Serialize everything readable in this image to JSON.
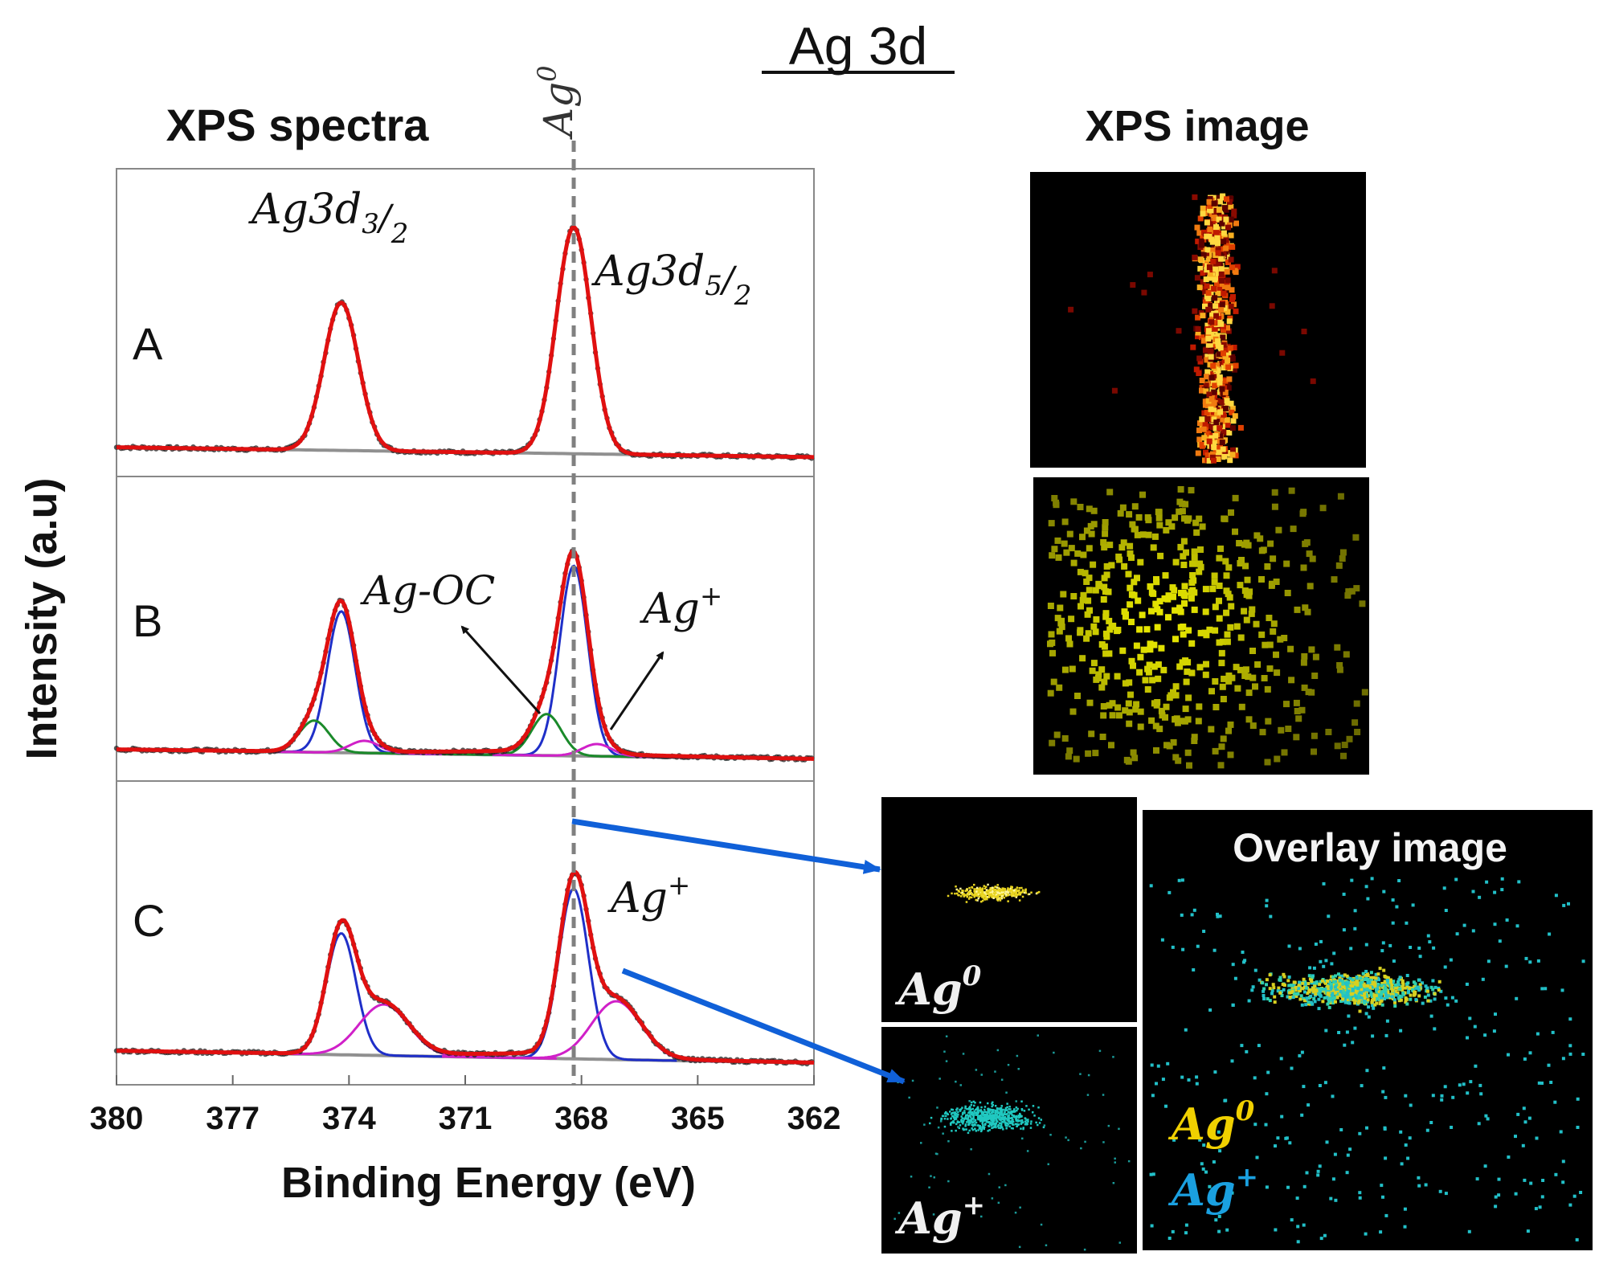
{
  "figure": {
    "title": "Ag 3d",
    "spectra_heading": "XPS spectra",
    "image_heading": "XPS image",
    "overlay_title": "Overlay image"
  },
  "chart_data": {
    "type": "line",
    "title": "Ag 3d",
    "subtitle": "XPS spectra",
    "xlabel": "Binding Energy (eV)",
    "ylabel": "Intensity (a.u)",
    "xlim": [
      380,
      362
    ],
    "xticks": [
      380,
      377,
      374,
      371,
      368,
      365,
      362
    ],
    "reference_line": {
      "label_base": "Ag",
      "label_sup": "0",
      "x": 368.2
    },
    "panels": [
      {
        "label": "A",
        "baseline": [
          0.06,
          0.02
        ],
        "components": [
          {
            "name": "Ag3d3/2 Ag0",
            "color": "#1f2fc8",
            "center": 374.2,
            "height": 0.6,
            "fwhm": 1.05
          },
          {
            "name": "Ag3d5/2 Ag0",
            "color": "#1f2fc8",
            "center": 368.2,
            "height": 0.92,
            "fwhm": 1.05
          }
        ],
        "annotations": [
          {
            "base": "Ag3d",
            "sub": "3",
            "denom": "2",
            "peak": "Ag3d3/2"
          },
          {
            "base": "Ag3d",
            "sub": "5",
            "denom": "2",
            "peak": "Ag3d5/2"
          }
        ]
      },
      {
        "label": "B",
        "baseline": [
          0.07,
          0.03
        ],
        "components": [
          {
            "name": "Ag0 3d3/2",
            "color": "#1f2fc8",
            "center": 374.2,
            "height": 0.58,
            "fwhm": 0.85
          },
          {
            "name": "Ag-OC 3d3/2",
            "color": "#1a8a2a",
            "center": 374.9,
            "height": 0.13,
            "fwhm": 0.9
          },
          {
            "name": "Ag+ 3d3/2",
            "color": "#d020c8",
            "center": 373.6,
            "height": 0.05,
            "fwhm": 0.9
          },
          {
            "name": "Ag0 3d5/2",
            "color": "#1f2fc8",
            "center": 368.2,
            "height": 0.78,
            "fwhm": 0.85
          },
          {
            "name": "Ag-OC 3d5/2",
            "color": "#1a8a2a",
            "center": 368.9,
            "height": 0.17,
            "fwhm": 0.9
          },
          {
            "name": "Ag+ 3d5/2",
            "color": "#d020c8",
            "center": 367.6,
            "height": 0.05,
            "fwhm": 0.9
          }
        ],
        "annotations": [
          {
            "text": "Ag-OC"
          },
          {
            "base": "Ag",
            "sup": "+"
          }
        ]
      },
      {
        "label": "C",
        "baseline": [
          0.08,
          0.03
        ],
        "components": [
          {
            "name": "Ag0 3d3/2",
            "color": "#1f2fc8",
            "center": 374.2,
            "height": 0.5,
            "fwhm": 0.9
          },
          {
            "name": "Ag+ 3d3/2",
            "color": "#d020c8",
            "center": 373.1,
            "height": 0.21,
            "fwhm": 1.5
          },
          {
            "name": "Ag0 3d5/2",
            "color": "#1f2fc8",
            "center": 368.2,
            "height": 0.7,
            "fwhm": 0.9
          },
          {
            "name": "Ag+ 3d5/2",
            "color": "#d020c8",
            "center": 367.1,
            "height": 0.24,
            "fwhm": 1.5
          }
        ],
        "annotations": [
          {
            "base": "Ag",
            "sup": "+"
          }
        ]
      }
    ],
    "colors": {
      "fit": "#e01010",
      "baseline": "#909090",
      "data": "#222222",
      "reference": "#808080",
      "arrow": "#1060d8"
    }
  },
  "images": {
    "map_ag0_label": {
      "base": "Ag",
      "sup": "0"
    },
    "map_agplus_label": {
      "base": "Ag",
      "sup": "+"
    },
    "overlay_legend": [
      {
        "base": "Ag",
        "sup": "0",
        "color": "#f0d000"
      },
      {
        "base": "Ag",
        "sup": "+",
        "color": "#1aa0e0"
      }
    ]
  }
}
